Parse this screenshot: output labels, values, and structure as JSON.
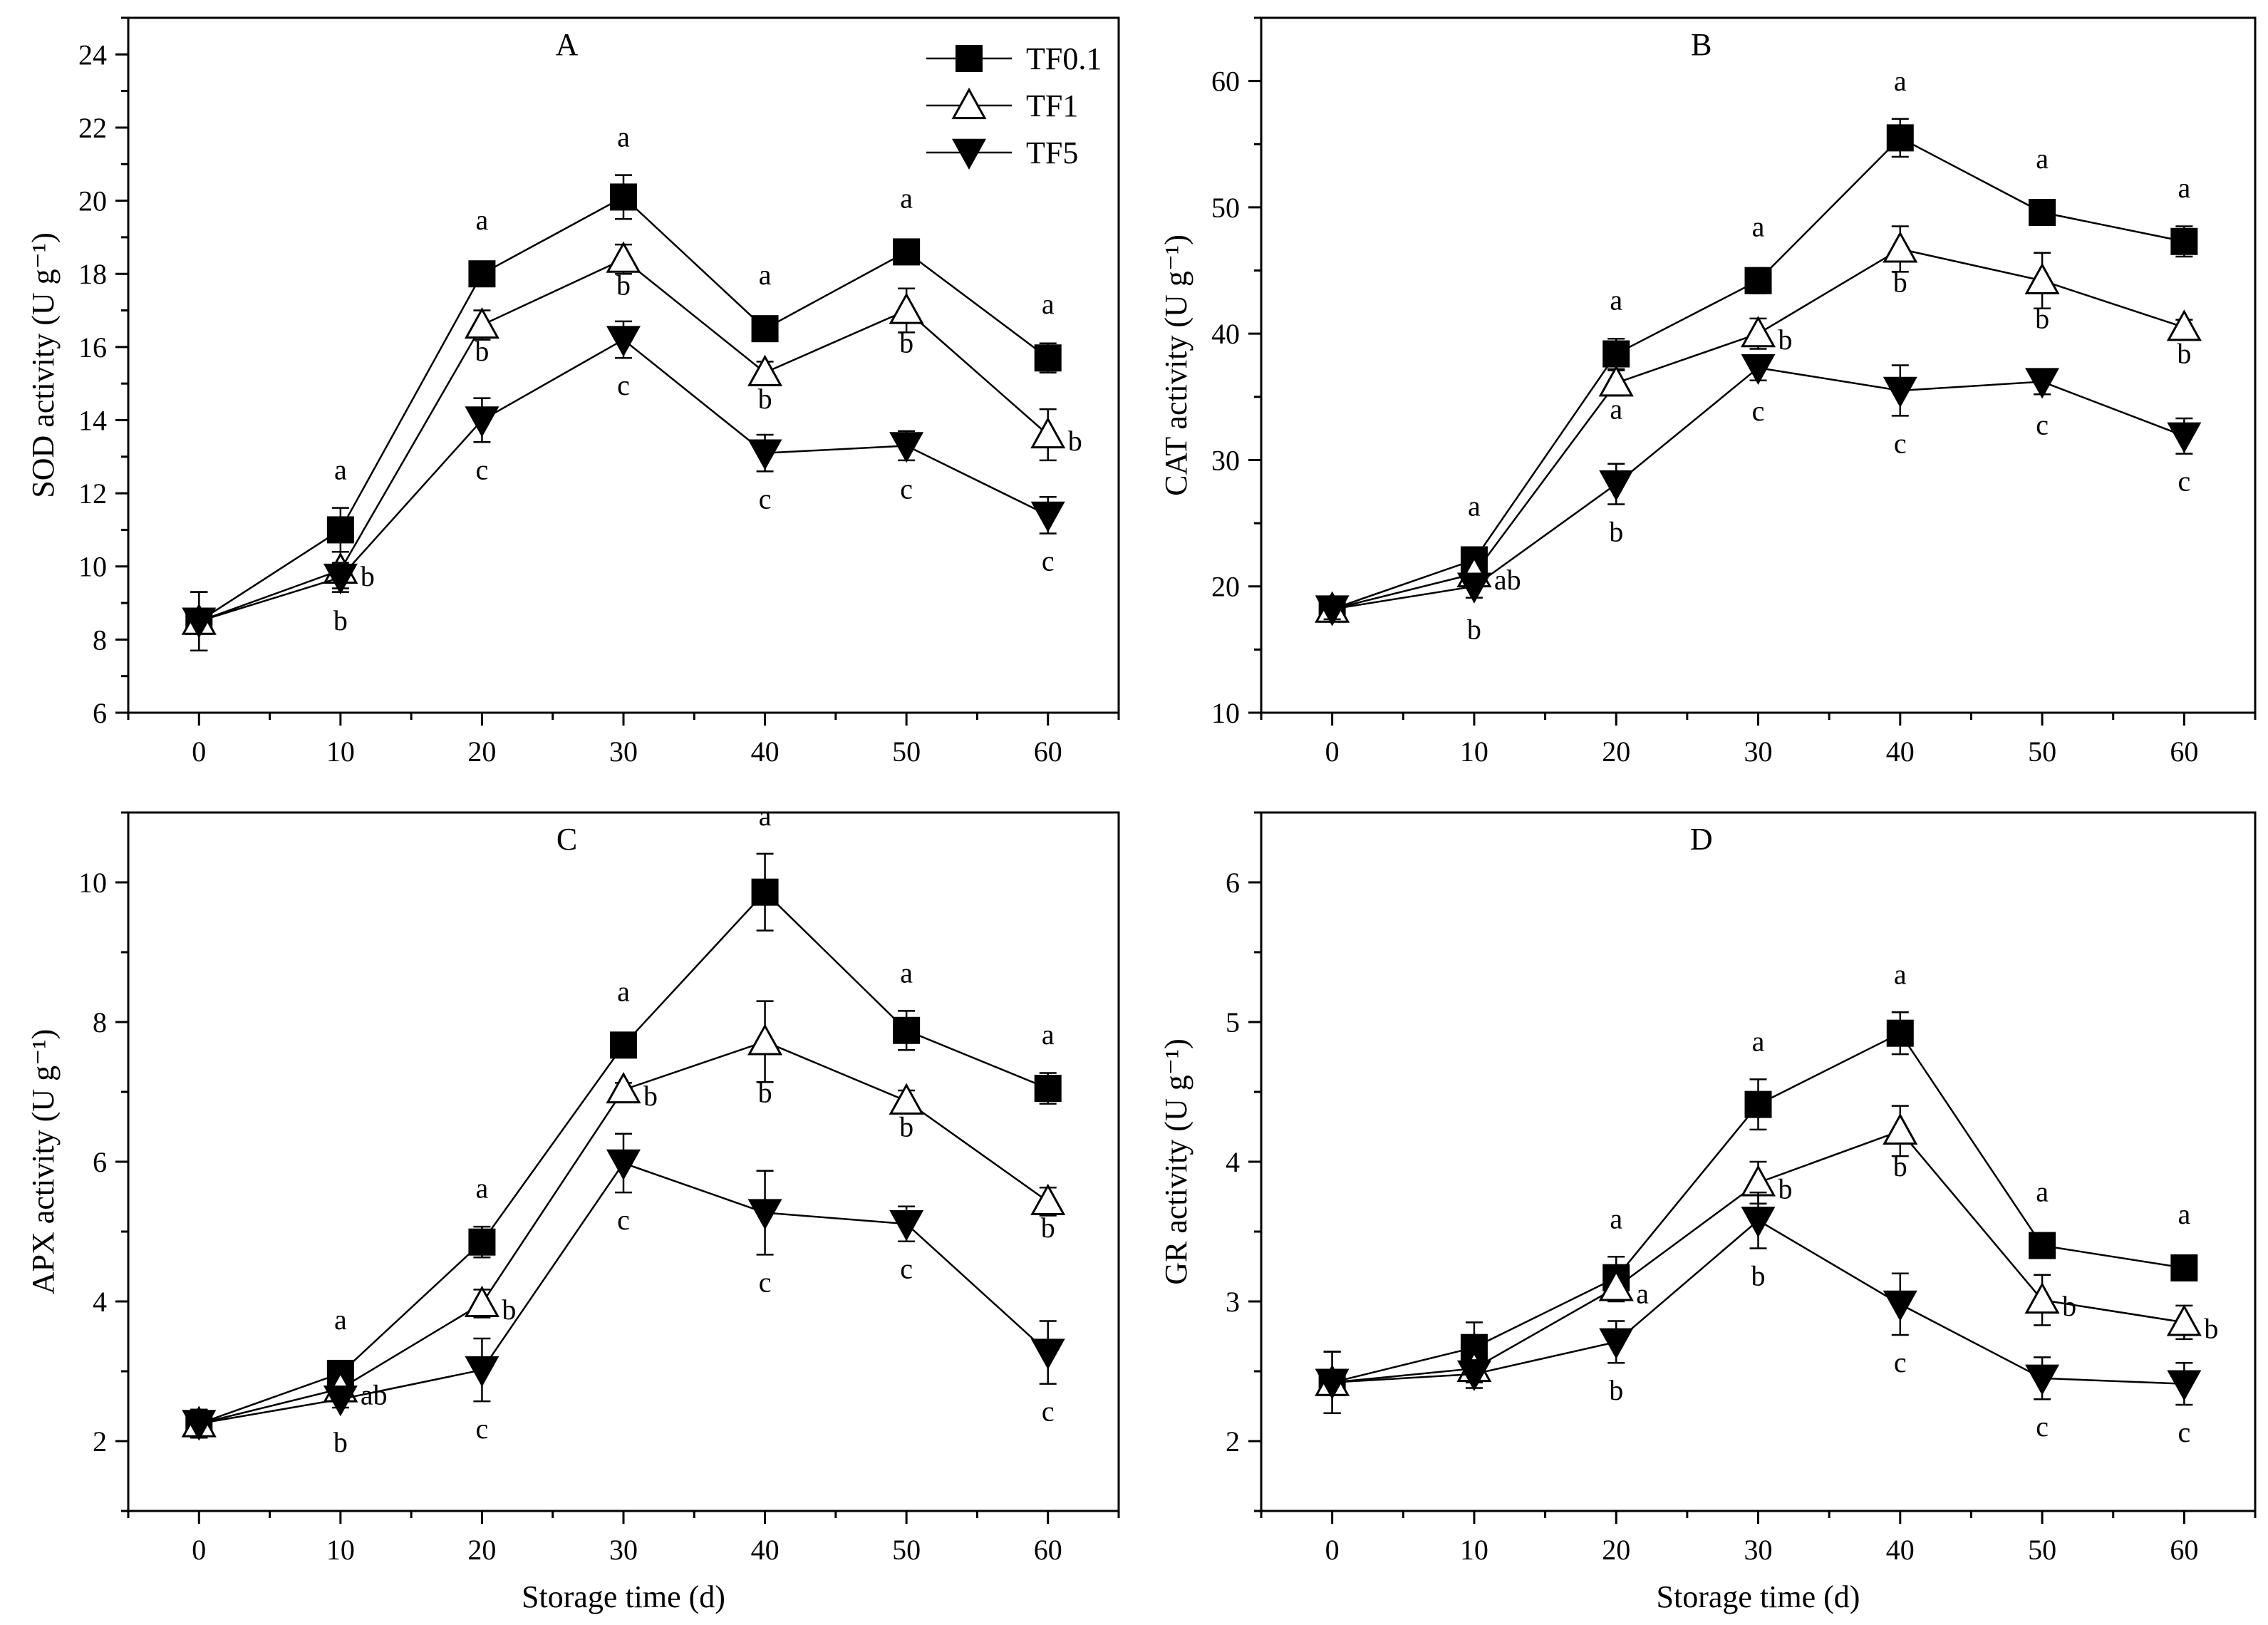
{
  "figure": {
    "x_axis_label": "Storage time (d)",
    "legend": [
      "TF0.1",
      "TF1",
      "TF5"
    ]
  },
  "chart_data": [
    {
      "type": "line",
      "panel": "A",
      "ylabel": "SOD activity (U g⁻¹)",
      "xlabel": "",
      "x": [
        0,
        10,
        20,
        30,
        40,
        50,
        60
      ],
      "xlim": [
        -5,
        65
      ],
      "ylim": [
        6,
        25
      ],
      "yticks": [
        6,
        8,
        10,
        12,
        14,
        16,
        18,
        20,
        22,
        24
      ],
      "series": [
        {
          "name": "TF0.1",
          "marker": "square",
          "values": [
            8.5,
            11.0,
            18.0,
            20.1,
            16.5,
            18.6,
            15.7
          ],
          "errors": [
            0.8,
            0.6,
            0.3,
            0.6,
            0.3,
            0.2,
            0.4
          ],
          "labels": [
            "",
            "a",
            "a",
            "a",
            "a",
            "a",
            "a"
          ]
        },
        {
          "name": "TF1",
          "marker": "triangle-up-open",
          "values": [
            8.5,
            9.9,
            16.6,
            18.4,
            15.3,
            17.0,
            13.6
          ],
          "errors": [
            0.8,
            0.5,
            0.4,
            0.4,
            0.3,
            0.6,
            0.7
          ],
          "labels": [
            "",
            "b",
            "b",
            "b",
            "b",
            "b",
            "b"
          ]
        },
        {
          "name": "TF5",
          "marker": "triangle-down",
          "values": [
            8.5,
            9.7,
            14.0,
            16.2,
            13.1,
            13.3,
            11.4
          ],
          "errors": [
            0.8,
            0.4,
            0.6,
            0.5,
            0.5,
            0.4,
            0.5
          ],
          "labels": [
            "",
            "b",
            "c",
            "c",
            "c",
            "c",
            "c"
          ]
        }
      ]
    },
    {
      "type": "line",
      "panel": "B",
      "ylabel": "CAT activity (U g⁻¹)",
      "xlabel": "",
      "x": [
        0,
        10,
        20,
        30,
        40,
        50,
        60
      ],
      "xlim": [
        -5,
        65
      ],
      "ylim": [
        10,
        65
      ],
      "yticks": [
        10,
        20,
        30,
        40,
        50,
        60
      ],
      "series": [
        {
          "name": "TF0.1",
          "marker": "square",
          "values": [
            18.2,
            22.1,
            38.4,
            44.2,
            55.5,
            49.6,
            47.3
          ],
          "errors": [
            0.8,
            0.8,
            1.2,
            1.0,
            1.5,
            0.8,
            1.2
          ],
          "labels": [
            "",
            "a",
            "a",
            "a",
            "a",
            "a",
            "a"
          ]
        },
        {
          "name": "TF1",
          "marker": "triangle-up-open",
          "values": [
            18.2,
            21.0,
            36.1,
            40.0,
            46.7,
            44.2,
            40.5
          ],
          "errors": [
            0.8,
            0.7,
            1.0,
            1.2,
            1.8,
            2.2,
            0.6
          ],
          "labels": [
            "",
            "ab",
            "a",
            "b",
            "b",
            "b",
            "b"
          ]
        },
        {
          "name": "TF5",
          "marker": "triangle-down",
          "values": [
            18.2,
            20.0,
            28.1,
            37.3,
            35.5,
            36.2,
            31.9
          ],
          "errors": [
            0.8,
            0.9,
            1.6,
            1.0,
            2.0,
            1.0,
            1.4
          ],
          "labels": [
            "",
            "b",
            "b",
            "c",
            "c",
            "c",
            "c"
          ]
        }
      ]
    },
    {
      "type": "line",
      "panel": "C",
      "ylabel": "APX activity (U g⁻¹)",
      "xlabel": "Storage time (d)",
      "x": [
        0,
        10,
        20,
        30,
        40,
        50,
        60
      ],
      "xlim": [
        -5,
        65
      ],
      "ylim": [
        1,
        11
      ],
      "yticks": [
        2,
        4,
        6,
        8,
        10
      ],
      "series": [
        {
          "name": "TF0.1",
          "marker": "square",
          "values": [
            2.25,
            2.97,
            4.85,
            7.67,
            9.86,
            7.88,
            7.05
          ],
          "errors": [
            0.2,
            0.15,
            0.22,
            0.15,
            0.55,
            0.28,
            0.22
          ],
          "labels": [
            "",
            "a",
            "a",
            "a",
            "a",
            "a",
            "a"
          ]
        },
        {
          "name": "TF1",
          "marker": "triangle-up-open",
          "values": [
            2.25,
            2.75,
            3.97,
            7.03,
            7.72,
            6.87,
            5.43
          ],
          "errors": [
            0.2,
            0.12,
            0.2,
            0.1,
            0.58,
            0.15,
            0.2
          ],
          "labels": [
            "",
            "ab",
            "b",
            "b",
            "b",
            "b",
            "b"
          ]
        },
        {
          "name": "TF5",
          "marker": "triangle-down",
          "values": [
            2.25,
            2.6,
            3.02,
            5.98,
            5.27,
            5.11,
            3.27
          ],
          "errors": [
            0.2,
            0.12,
            0.45,
            0.42,
            0.6,
            0.25,
            0.45
          ],
          "labels": [
            "",
            "b",
            "c",
            "c",
            "c",
            "c",
            "c"
          ]
        }
      ]
    },
    {
      "type": "line",
      "panel": "D",
      "ylabel": "GR activity (U g⁻¹)",
      "xlabel": "Storage time (d)",
      "x": [
        0,
        10,
        20,
        30,
        40,
        50,
        60
      ],
      "xlim": [
        -5,
        65
      ],
      "ylim": [
        1.5,
        6.5
      ],
      "yticks": [
        2,
        3,
        4,
        5,
        6
      ],
      "series": [
        {
          "name": "TF0.1",
          "marker": "square",
          "values": [
            2.42,
            2.67,
            3.17,
            4.41,
            4.92,
            3.4,
            3.24
          ],
          "errors": [
            0.22,
            0.18,
            0.15,
            0.18,
            0.15,
            0.08,
            0.08
          ],
          "labels": [
            "",
            "",
            "a",
            "a",
            "a",
            "a",
            "a"
          ]
        },
        {
          "name": "TF1",
          "marker": "triangle-up-open",
          "values": [
            2.42,
            2.52,
            3.1,
            3.85,
            4.22,
            3.01,
            2.85
          ],
          "errors": [
            0.22,
            0.1,
            0.1,
            0.15,
            0.18,
            0.18,
            0.12
          ],
          "labels": [
            "",
            "",
            "a",
            "b",
            "b",
            "b",
            "b"
          ]
        },
        {
          "name": "TF5",
          "marker": "triangle-down",
          "values": [
            2.42,
            2.48,
            2.71,
            3.58,
            2.98,
            2.45,
            2.41
          ],
          "errors": [
            0.22,
            0.1,
            0.15,
            0.2,
            0.22,
            0.15,
            0.15
          ],
          "labels": [
            "",
            "",
            "b",
            "b",
            "c",
            "c",
            "c"
          ]
        }
      ]
    }
  ]
}
